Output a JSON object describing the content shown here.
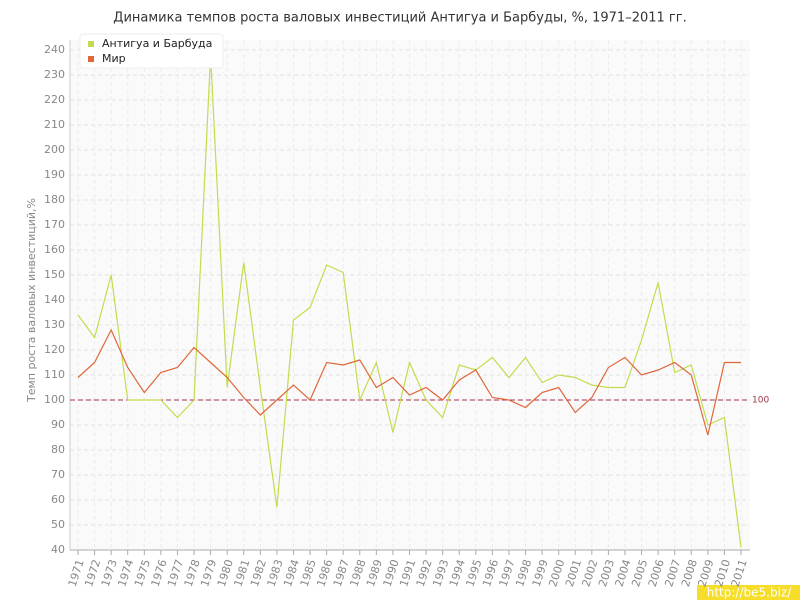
{
  "chart_data": {
    "type": "line",
    "title": "Динамика темпов роста валовых инвестиций Антигуа и Барбуды, %, 1971–2011 гг.",
    "y_label": "Темп роста валовых инвестиций,%",
    "watermark": "http://be5.biz/",
    "categories": [
      "1971",
      "1972",
      "1973",
      "1974",
      "1975",
      "1976",
      "1977",
      "1978",
      "1979",
      "1980",
      "1981",
      "1982",
      "1983",
      "1984",
      "1985",
      "1986",
      "1987",
      "1988",
      "1989",
      "1990",
      "1991",
      "1992",
      "1993",
      "1994",
      "1995",
      "1996",
      "1997",
      "1998",
      "1999",
      "2000",
      "2001",
      "2002",
      "2003",
      "2004",
      "2005",
      "2006",
      "2007",
      "2008",
      "2009",
      "2010",
      "2011"
    ],
    "series": [
      {
        "name": "Антигуа и Барбуда",
        "color": "#c3dc4f",
        "values": [
          134,
          125,
          150,
          100,
          100,
          100,
          93,
          100,
          238,
          105,
          155,
          105,
          57,
          132,
          137,
          154,
          151,
          100,
          115,
          87,
          115,
          100,
          93,
          114,
          112,
          117,
          109,
          117,
          107,
          110,
          109,
          106,
          105,
          105,
          124,
          147,
          111,
          114,
          90,
          93,
          41
        ]
      },
      {
        "name": "Мир",
        "color": "#e0673a",
        "values": [
          109,
          115,
          128,
          113,
          103,
          111,
          113,
          121,
          115,
          109,
          101,
          94,
          100,
          106,
          100,
          115,
          114,
          116,
          105,
          109,
          102,
          105,
          100,
          108,
          112,
          101,
          100,
          97,
          103,
          105,
          95,
          101,
          113,
          117,
          110,
          112,
          115,
          110,
          86,
          115,
          115
        ]
      }
    ],
    "reference_line": 100,
    "ylim": [
      40,
      240
    ],
    "yticks": [
      40,
      50,
      60,
      70,
      80,
      90,
      100,
      110,
      120,
      130,
      140,
      150,
      160,
      170,
      180,
      190,
      200,
      210,
      220,
      230,
      240
    ],
    "grid": true,
    "legend": "top-left"
  }
}
